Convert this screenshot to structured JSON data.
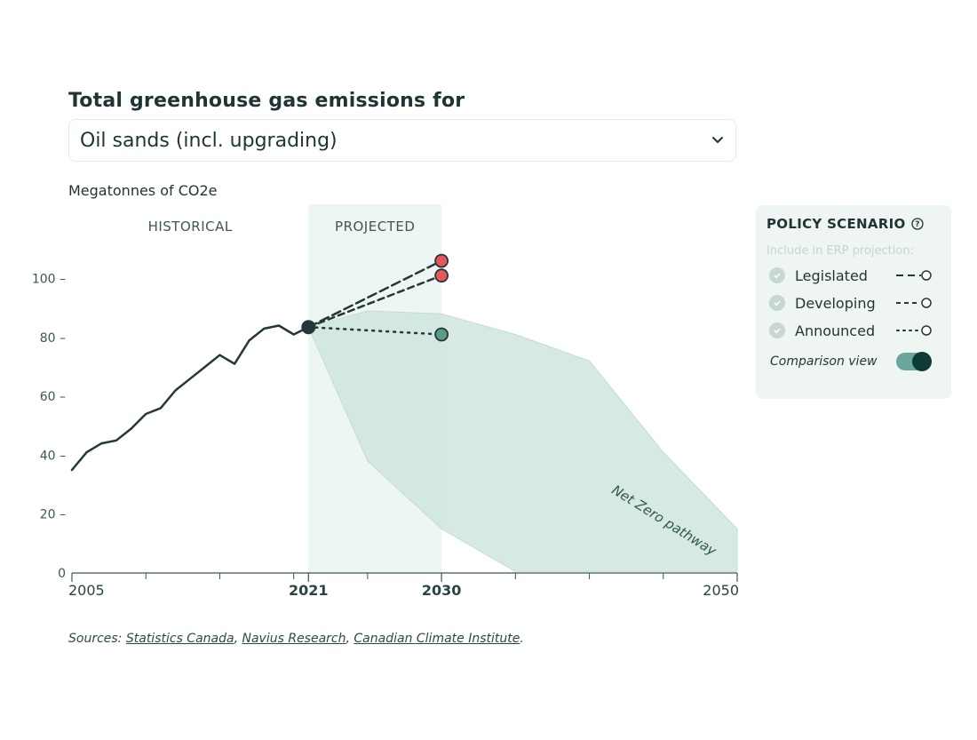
{
  "header": {
    "title": "Total greenhouse gas emissions for",
    "select_value": "Oil sands (incl. upgrading)",
    "unit_label": "Megatonnes of CO2e"
  },
  "colors": {
    "line": "#24383a",
    "projected_band": "#eef6f3",
    "netzero_fill": "#cfe5de",
    "red_marker": "#e5575b",
    "green_marker": "#5d9a88",
    "text": "#1f3535"
  },
  "chart_data": {
    "type": "line",
    "title": "Total greenhouse gas emissions for Oil sands (incl. upgrading)",
    "ylabel": "Megatonnes of CO2e",
    "xlabel": "",
    "xlim": [
      2005,
      2050
    ],
    "ylim": [
      0,
      110
    ],
    "y_ticks": [
      0,
      20,
      40,
      60,
      80,
      100
    ],
    "y_tick_labels": [
      "0",
      "20 –",
      "40 –",
      "60 –",
      "80 –",
      "100 –"
    ],
    "x_ticks_labeled": [
      {
        "value": 2005,
        "label": "2005",
        "bold": false
      },
      {
        "value": 2021,
        "label": "2021",
        "bold": true
      },
      {
        "value": 2030,
        "label": "2030",
        "bold": true
      },
      {
        "value": 2050,
        "label": "2050",
        "bold": false
      }
    ],
    "x_ticks_minor": [
      2010,
      2015,
      2020,
      2025,
      2035,
      2040,
      2045
    ],
    "regions": [
      {
        "label": "HISTORICAL",
        "from": 2005,
        "to": 2021
      },
      {
        "label": "PROJECTED",
        "from": 2021,
        "to": 2030
      }
    ],
    "series": [
      {
        "name": "Historical",
        "style": "solid",
        "x": [
          2005,
          2006,
          2007,
          2008,
          2009,
          2010,
          2011,
          2012,
          2013,
          2014,
          2015,
          2016,
          2017,
          2018,
          2019,
          2020,
          2021
        ],
        "y": [
          35,
          41,
          44,
          45,
          49,
          54,
          56,
          62,
          66,
          70,
          74,
          71,
          79,
          83,
          84,
          81,
          83.5
        ]
      },
      {
        "name": "Legislated",
        "style": "long-dash",
        "x": [
          2021,
          2030
        ],
        "y": [
          83.5,
          106
        ],
        "marker": "red"
      },
      {
        "name": "Developing",
        "style": "dash",
        "x": [
          2021,
          2030
        ],
        "y": [
          83.5,
          101
        ],
        "marker": "red"
      },
      {
        "name": "Announced",
        "style": "dot",
        "x": [
          2021,
          2030
        ],
        "y": [
          83.5,
          81
        ],
        "marker": "green"
      }
    ],
    "net_zero_pathway": {
      "label": "Net Zero pathway",
      "upper": {
        "x": [
          2021,
          2025,
          2030,
          2035,
          2040,
          2045,
          2050
        ],
        "y": [
          83.5,
          89,
          88,
          81,
          72,
          41,
          15
        ]
      },
      "lower": {
        "x": [
          2021,
          2025,
          2030,
          2035,
          2040,
          2045,
          2050
        ],
        "y": [
          83.5,
          38,
          15,
          0.5,
          0.5,
          0.5,
          0.5
        ]
      }
    }
  },
  "panel": {
    "title": "POLICY SCENARIO",
    "subtitle": "Include in ERP projection:",
    "options": [
      {
        "label": "Legislated",
        "checked": true,
        "line_style": "long-dash"
      },
      {
        "label": "Developing",
        "checked": true,
        "line_style": "dash"
      },
      {
        "label": "Announced",
        "checked": true,
        "line_style": "dot"
      }
    ],
    "comparison_label": "Comparison view",
    "comparison_on": true
  },
  "sources": {
    "prefix": "Sources: ",
    "links": [
      "Statistics Canada",
      "Navius Research",
      "Canadian Climate Institute"
    ],
    "sep": ", ",
    "suffix": "."
  }
}
